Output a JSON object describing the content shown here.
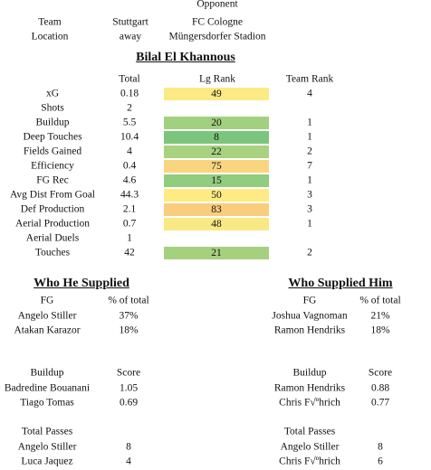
{
  "match_info": {
    "opponent_label": "Opponent",
    "rows": [
      [
        "Team",
        "Stuttgart",
        "FC Cologne"
      ],
      [
        "Location",
        "away",
        "Müngersdorfer Stadion"
      ]
    ]
  },
  "player": "Bilal El Khannous",
  "stats_table": {
    "columns": [
      "Total",
      "Lg Rank",
      "Team Rank"
    ],
    "rows": [
      {
        "label": "xG",
        "total": 0.18,
        "lg_rank": 49,
        "team_rank": 4
      },
      {
        "label": "Shots",
        "total": 2
      },
      {
        "label": "Buildup",
        "total": 5.5,
        "lg_rank": 20,
        "team_rank": 1
      },
      {
        "label": "Deep Touches",
        "total": 10.4,
        "lg_rank": 8,
        "team_rank": 1
      },
      {
        "label": "Fields Gained",
        "total": 4,
        "lg_rank": 22,
        "team_rank": 2
      },
      {
        "label": "Efficiency",
        "total": 0.4,
        "lg_rank": 75,
        "team_rank": 7
      },
      {
        "label": "FG Rec",
        "total": 4.6,
        "lg_rank": 15,
        "team_rank": 1
      },
      {
        "label": "Avg Dist From Goal",
        "total": 44.3,
        "lg_rank": 50,
        "team_rank": 3
      },
      {
        "label": "Def Production",
        "total": 2.1,
        "lg_rank": 83,
        "team_rank": 3
      },
      {
        "label": "Aerial Production",
        "total": 0.7,
        "lg_rank": 48,
        "team_rank": 1
      },
      {
        "label": "Aerial Duels",
        "total": 1
      },
      {
        "label": "Touches",
        "total": 42,
        "lg_rank": 21,
        "team_rank": 2
      }
    ]
  },
  "sections": [
    {
      "title": "Who He Supplied",
      "groups": [
        {
          "columns": [
            "FG",
            "% of total"
          ],
          "rows": [
            [
              "Angelo Stiller",
              "37%"
            ],
            [
              "Atakan Karazor",
              "18%"
            ]
          ]
        },
        {
          "columns": [
            "Buildup",
            "Score"
          ],
          "rows": [
            [
              "Badredine Bouanani",
              1.05
            ],
            [
              "Tiago Tomas",
              0.69
            ]
          ]
        },
        {
          "columns": [
            "Total Passes"
          ],
          "rows": [
            [
              "Angelo Stiller",
              8
            ],
            [
              "Luca Jaquez",
              4
            ]
          ]
        }
      ]
    },
    {
      "title": "Who Supplied Him",
      "groups": [
        {
          "columns": [
            "FG",
            "% of total"
          ],
          "rows": [
            [
              "Joshua Vagnoman",
              "21%"
            ],
            [
              "Ramon Hendriks",
              "18%"
            ]
          ]
        },
        {
          "columns": [
            "Buildup",
            "Score"
          ],
          "rows": [
            [
              "Ramon Hendriks",
              0.88
            ],
            [
              "Chris F√ºhrich",
              0.77
            ]
          ]
        },
        {
          "columns": [
            "Total Passes"
          ],
          "rows": [
            [
              "Angelo Stiller",
              8
            ],
            [
              "Chris F√ºhrich",
              6
            ]
          ]
        }
      ]
    }
  ]
}
